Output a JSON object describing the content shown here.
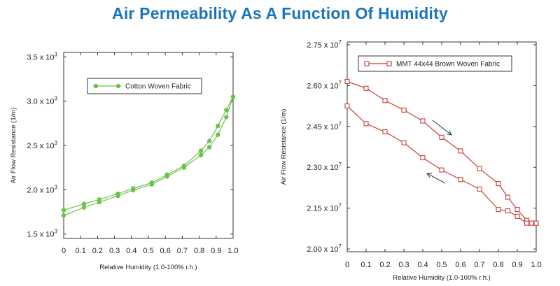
{
  "title": "Air Permeability As A Function Of Humidity",
  "chart_data": [
    {
      "type": "line",
      "xlabel": "Relative Humidity (1.0-100% r.h.)",
      "ylabel": "Air Flow Resistance (1/m)",
      "xlim": [
        0,
        1.0
      ],
      "ylim": [
        1450,
        3550
      ],
      "x_ticks": [
        0,
        0.1,
        0.2,
        0.3,
        0.4,
        0.5,
        0.6,
        0.7,
        0.8,
        0.9,
        1.0
      ],
      "x_tick_labels": [
        "0",
        "0.1",
        "0.2",
        "0.3",
        "0.4",
        "0.5",
        "0.6",
        "0.7",
        "0.8",
        "0.9",
        "1.0"
      ],
      "y_ticks": [
        1500,
        2000,
        2500,
        3000,
        3500
      ],
      "y_tick_labels": [
        {
          "mantissa": "1.5 x 10",
          "exp": "3"
        },
        {
          "mantissa": "2.0 x 10",
          "exp": "3"
        },
        {
          "mantissa": "2.5 x 10",
          "exp": "3"
        },
        {
          "mantissa": "3.0 x 10",
          "exp": "3"
        },
        {
          "mantissa": "3.5 x 10",
          "exp": "3"
        }
      ],
      "legend_position": "top-left",
      "marker": "circle",
      "color": "#6cc24a",
      "series": [
        {
          "name": "Cotton Woven Fabric",
          "x": [
            0,
            0.12,
            0.21,
            0.32,
            0.41,
            0.52,
            0.61,
            0.71,
            0.81,
            0.86,
            0.91,
            0.96,
            1.0
          ],
          "y": [
            1770,
            1840,
            1890,
            1955,
            2015,
            2080,
            2170,
            2270,
            2440,
            2550,
            2720,
            2900,
            3050
          ]
        },
        {
          "name": "",
          "x": [
            0,
            0.12,
            0.21,
            0.32,
            0.41,
            0.52,
            0.61,
            0.71,
            0.81,
            0.86,
            0.91,
            0.96,
            1.0
          ],
          "y": [
            1710,
            1800,
            1860,
            1930,
            1995,
            2060,
            2150,
            2250,
            2390,
            2480,
            2620,
            2820,
            3050
          ]
        }
      ]
    },
    {
      "type": "line",
      "xlabel": "Relative Humidity (1.0-100% r.h.)",
      "ylabel": "Air Flow Resistance (1/m)",
      "xlim": [
        0,
        1.0
      ],
      "ylim": [
        19900000,
        27600000
      ],
      "x_ticks": [
        0,
        0.1,
        0.2,
        0.3,
        0.4,
        0.5,
        0.6,
        0.7,
        0.8,
        0.9,
        1.0
      ],
      "x_tick_labels": [
        "0",
        "0.1",
        "0.2",
        "0.3",
        "0.4",
        "0.5",
        "0.6",
        "0.7",
        "0.8",
        "0.9",
        "1.0"
      ],
      "y_ticks": [
        20000000,
        21500000,
        23000000,
        24500000,
        26000000,
        27500000
      ],
      "y_tick_labels": [
        {
          "mantissa": "2.00 x 10",
          "exp": "7"
        },
        {
          "mantissa": "2.15 x 10",
          "exp": "7"
        },
        {
          "mantissa": "2.30 x 10",
          "exp": "7"
        },
        {
          "mantissa": "2.45 x 10",
          "exp": "7"
        },
        {
          "mantissa": "2.60 x 10",
          "exp": "7"
        },
        {
          "mantissa": "2.75 x 10",
          "exp": "7"
        }
      ],
      "legend_position": "top-left",
      "marker": "square",
      "color": "#c8403a",
      "series": [
        {
          "name": "MMT 44x44 Brown Woven Fabric",
          "x": [
            0,
            0.1,
            0.2,
            0.3,
            0.4,
            0.5,
            0.6,
            0.7,
            0.8,
            0.85,
            0.9,
            0.95,
            0.975,
            1.0
          ],
          "y": [
            26150000,
            25900000,
            25450000,
            25100000,
            24700000,
            24100000,
            23600000,
            22950000,
            22400000,
            21900000,
            21450000,
            21050000,
            20950000,
            20950000
          ]
        },
        {
          "name": "",
          "x": [
            0,
            0.1,
            0.2,
            0.3,
            0.4,
            0.5,
            0.6,
            0.7,
            0.8,
            0.85,
            0.9,
            0.95,
            0.975,
            1.0
          ],
          "y": [
            25250000,
            24600000,
            24300000,
            23900000,
            23350000,
            22900000,
            22550000,
            22200000,
            21450000,
            21400000,
            21200000,
            20950000,
            20950000,
            20950000
          ]
        }
      ]
    }
  ]
}
